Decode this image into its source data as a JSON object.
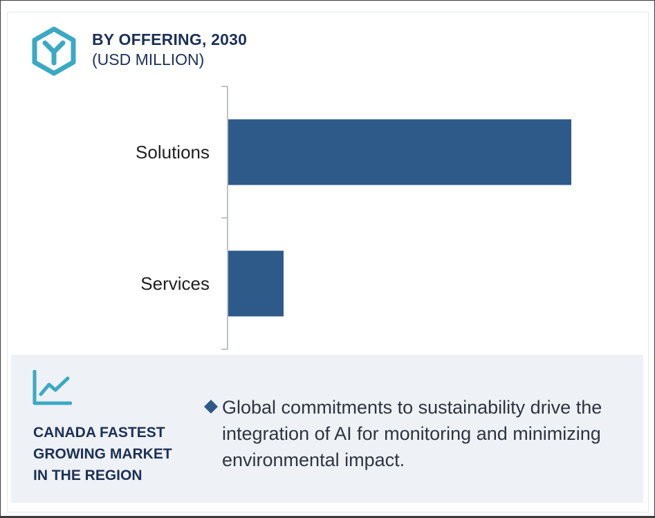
{
  "header": {
    "title": "BY OFFERING, 2030",
    "subtitle": "(USD MILLION)",
    "logo_icon": "hexagon-y-logo-icon"
  },
  "chart_data": {
    "type": "bar",
    "orientation": "horizontal",
    "title": "BY OFFERING, 2030",
    "subtitle": "(USD MILLION)",
    "categories": [
      "Solutions",
      "Services"
    ],
    "values": [
      620,
      100
    ],
    "xlim": [
      0,
      720
    ],
    "value_axis_visible": false,
    "grid": false,
    "bar_color": "#2e5a8a"
  },
  "highlight": {
    "icon": "trend-chart-icon",
    "region_lines": [
      "CANADA FASTEST",
      "GROWING MARKET",
      "IN THE REGION"
    ],
    "bullet_text": "Global commitments to sustainability drive the integration of AI for monitoring and minimizing environmental impact.",
    "bullet_color": "#2e5a8a"
  },
  "colors": {
    "accent_teal": "#3aa9c4",
    "navy": "#1c3156",
    "bar": "#2e5a8a",
    "panel_bg": "#eef1f5"
  }
}
